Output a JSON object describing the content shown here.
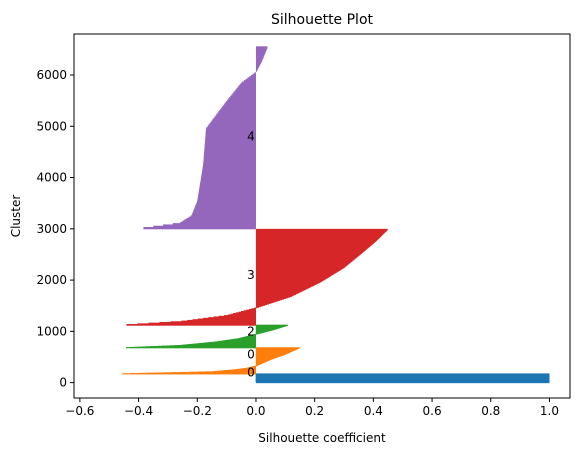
{
  "chart_data": {
    "type": "silhouette",
    "title": "Silhouette Plot",
    "xlabel": "Silhouette coefficient",
    "ylabel": "Cluster",
    "xlim": [
      -0.62,
      1.07
    ],
    "ylim": [
      -300,
      6800
    ],
    "x_ticks": [
      -0.6,
      -0.4,
      -0.2,
      0.0,
      0.2,
      0.4,
      0.6,
      0.8,
      1.0
    ],
    "x_tick_labels": [
      "−0.6",
      "−0.4",
      "−0.2",
      "0.0",
      "0.2",
      "0.4",
      "0.6",
      "0.8",
      "1.0"
    ],
    "y_ticks": [
      0,
      1000,
      2000,
      3000,
      4000,
      5000,
      6000
    ],
    "y_tick_labels": [
      "0",
      "1000",
      "2000",
      "3000",
      "4000",
      "5000",
      "6000"
    ],
    "clusters": [
      {
        "label": "0",
        "color": "#1f77b4",
        "y_start": 0,
        "y_end": 170,
        "label_y": 200,
        "profile": [
          [
            0,
            1.0
          ],
          [
            1,
            1.0
          ]
        ]
      },
      {
        "label": "0",
        "color": "#ff7f0e",
        "y_start": 170,
        "y_end": 680,
        "label_y": 550,
        "profile": [
          [
            0,
            -0.47
          ],
          [
            0.08,
            -0.15
          ],
          [
            0.16,
            -0.07
          ],
          [
            0.22,
            -0.03
          ],
          [
            0.3,
            0.0
          ],
          [
            0.55,
            0.05
          ],
          [
            0.75,
            0.1
          ],
          [
            0.9,
            0.13
          ],
          [
            1,
            0.15
          ]
        ]
      },
      {
        "label": "2",
        "color": "#2ca02c",
        "y_start": 680,
        "y_end": 1120,
        "label_y": 1000,
        "profile": [
          [
            0,
            -0.45
          ],
          [
            0.1,
            -0.26
          ],
          [
            0.25,
            -0.14
          ],
          [
            0.4,
            -0.06
          ],
          [
            0.6,
            0.0
          ],
          [
            0.8,
            0.06
          ],
          [
            1,
            0.11
          ]
        ]
      },
      {
        "label": "3",
        "color": "#d62728",
        "y_start": 1120,
        "y_end": 2990,
        "label_y": 2100,
        "profile": [
          [
            0,
            -0.46
          ],
          [
            0.04,
            -0.25
          ],
          [
            0.1,
            -0.1
          ],
          [
            0.18,
            0.0
          ],
          [
            0.3,
            0.12
          ],
          [
            0.45,
            0.22
          ],
          [
            0.6,
            0.3
          ],
          [
            0.75,
            0.36
          ],
          [
            0.88,
            0.41
          ],
          [
            1,
            0.45
          ]
        ]
      },
      {
        "label": "4",
        "color": "#9467bd",
        "y_start": 3000,
        "y_end": 6550,
        "label_y": 4800,
        "profile": [
          [
            0,
            -0.4
          ],
          [
            0.03,
            -0.26
          ],
          [
            0.07,
            -0.22
          ],
          [
            0.15,
            -0.2
          ],
          [
            0.35,
            -0.18
          ],
          [
            0.55,
            -0.17
          ],
          [
            0.7,
            -0.1
          ],
          [
            0.8,
            -0.05
          ],
          [
            0.86,
            0.0
          ],
          [
            0.92,
            0.02
          ],
          [
            0.96,
            0.03
          ],
          [
            1,
            0.04
          ]
        ]
      }
    ]
  }
}
